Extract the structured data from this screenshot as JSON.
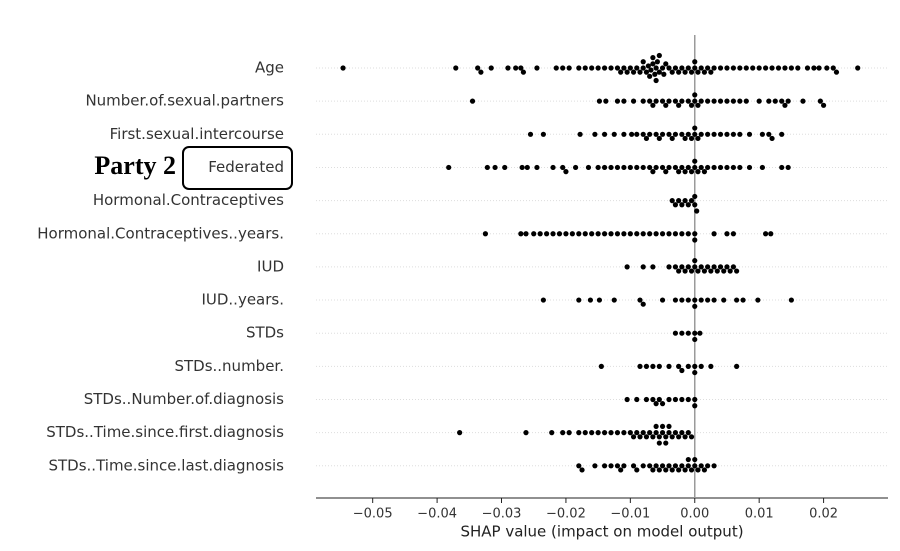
{
  "chart_data": {
    "type": "beeswarm",
    "annotation": "Party 2",
    "xlabel": "SHAP value (impact on model output)",
    "color": "#000000",
    "grid": true,
    "refline": 0,
    "xlim": [
      -0.0588,
      0.03
    ],
    "xticks": [
      {
        "value": -0.05,
        "label": "−0.05"
      },
      {
        "value": -0.04,
        "label": "−0.04"
      },
      {
        "value": -0.03,
        "label": "−0.03"
      },
      {
        "value": -0.02,
        "label": "−0.02"
      },
      {
        "value": -0.01,
        "label": "−0.01"
      },
      {
        "value": 0,
        "label": "0.00"
      },
      0.01,
      0.02
    ],
    "categories": [
      "Age",
      "Number.of.sexual.partners",
      "First.sexual.intercourse",
      "Federated",
      "Hormonal.Contraceptives",
      "Hormonal.Contraceptives..years.",
      "IUD",
      "IUD..years.",
      "STDs",
      "STDs..number.",
      "STDs..Number.of.diagnosis",
      "STDs..Time.since.first.diagnosis",
      "STDs..Time.since.last.diagnosis"
    ],
    "values": [
      [
        -0.0546,
        -0.0371,
        -0.0337,
        -0.0332,
        -0.0316,
        -0.029,
        -0.0278,
        -0.027,
        -0.0266,
        -0.0245,
        -0.0215,
        -0.0205,
        -0.0195,
        -0.018,
        -0.017,
        -0.016,
        -0.015,
        -0.014,
        -0.013,
        -0.012,
        -0.0115,
        -0.011,
        -0.0105,
        -0.01,
        -0.0095,
        -0.009,
        -0.0085,
        -0.008,
        -0.008,
        -0.0075,
        -0.0072,
        -0.007,
        -0.0068,
        -0.0065,
        -0.0065,
        -0.0062,
        -0.006,
        -0.006,
        -0.0058,
        -0.0055,
        -0.0055,
        -0.005,
        -0.0048,
        -0.0045,
        -0.004,
        -0.0035,
        -0.003,
        -0.0025,
        -0.002,
        -0.0015,
        -0.001,
        -0.0005,
        0,
        0,
        0.0005,
        0.001,
        0.0015,
        0.002,
        0.0025,
        0.003,
        0.004,
        0.005,
        0.006,
        0.007,
        0.008,
        0.009,
        0.01,
        0.011,
        0.012,
        0.013,
        0.014,
        0.015,
        0.016,
        0.0175,
        0.0185,
        0.0193,
        0.0205,
        0.0215,
        0.022,
        0.0253
      ],
      [
        -0.0345,
        -0.0148,
        -0.0138,
        -0.012,
        -0.011,
        -0.0095,
        -0.008,
        -0.007,
        -0.0065,
        -0.006,
        -0.005,
        -0.0045,
        -0.004,
        -0.003,
        -0.0025,
        -0.002,
        -0.001,
        -0.0005,
        0,
        0,
        0.0005,
        0.001,
        0.002,
        0.003,
        0.004,
        0.005,
        0.006,
        0.007,
        0.008,
        0.01,
        0.0115,
        0.0125,
        0.0135,
        0.014,
        0.0145,
        0.0168,
        0.0195,
        0.02
      ],
      [
        -0.0255,
        -0.0235,
        -0.0178,
        -0.0155,
        -0.014,
        -0.0125,
        -0.011,
        -0.0098,
        -0.009,
        -0.008,
        -0.0075,
        -0.007,
        -0.006,
        -0.0055,
        -0.005,
        -0.004,
        -0.0035,
        -0.003,
        -0.002,
        -0.0015,
        -0.001,
        -0.0005,
        0,
        0,
        0.0005,
        0.001,
        0.002,
        0.003,
        0.004,
        0.005,
        0.006,
        0.007,
        0.0085,
        0.0105,
        0.0115,
        0.012,
        0.0135
      ],
      [
        -0.0382,
        -0.0322,
        -0.031,
        -0.0295,
        -0.0268,
        -0.026,
        -0.0245,
        -0.022,
        -0.0205,
        -0.02,
        -0.0185,
        -0.0165,
        -0.015,
        -0.014,
        -0.013,
        -0.012,
        -0.011,
        -0.01,
        -0.009,
        -0.008,
        -0.007,
        -0.0065,
        -0.006,
        -0.005,
        -0.0045,
        -0.004,
        -0.003,
        -0.0025,
        -0.002,
        -0.0015,
        -0.001,
        -0.0005,
        0,
        0,
        0.0005,
        0.001,
        0.0015,
        0.002,
        0.003,
        0.004,
        0.005,
        0.006,
        0.007,
        0.0085,
        0.0105,
        0.0135,
        0.0145
      ],
      [
        -0.0035,
        -0.003,
        -0.0025,
        -0.002,
        -0.0015,
        -0.001,
        -0.0005,
        0,
        0,
        0.0003
      ],
      [
        -0.0325,
        -0.027,
        -0.0262,
        -0.025,
        -0.024,
        -0.023,
        -0.022,
        -0.021,
        -0.02,
        -0.019,
        -0.018,
        -0.017,
        -0.016,
        -0.015,
        -0.014,
        -0.013,
        -0.012,
        -0.011,
        -0.01,
        -0.009,
        -0.008,
        -0.007,
        -0.006,
        -0.005,
        -0.004,
        -0.003,
        -0.002,
        -0.001,
        0,
        0,
        0.003,
        0.005,
        0.006,
        0.011,
        0.0118
      ],
      [
        -0.0105,
        -0.008,
        -0.0065,
        -0.004,
        -0.003,
        -0.0025,
        -0.002,
        -0.0015,
        -0.001,
        -0.0005,
        0,
        0,
        0.0005,
        0.001,
        0.0015,
        0.002,
        0.0025,
        0.003,
        0.0035,
        0.004,
        0.0045,
        0.005,
        0.0055,
        0.006,
        0.0065
      ],
      [
        -0.0235,
        -0.018,
        -0.0162,
        -0.0148,
        -0.0125,
        -0.0085,
        -0.008,
        -0.005,
        -0.003,
        -0.002,
        -0.001,
        0,
        0,
        0.001,
        0.002,
        0.003,
        0.0045,
        0.0065,
        0.0075,
        0.0098,
        0.015
      ],
      [
        -0.003,
        -0.002,
        -0.001,
        0,
        0,
        0.0008
      ],
      [
        -0.0145,
        -0.0085,
        -0.0075,
        -0.0065,
        -0.0055,
        -0.004,
        -0.0025,
        -0.002,
        -0.001,
        0,
        0,
        0.001,
        0.0025,
        0.0065
      ],
      [
        -0.0105,
        -0.009,
        -0.0075,
        -0.0065,
        -0.006,
        -0.0055,
        -0.005,
        -0.004,
        -0.003,
        -0.002,
        -0.001,
        0,
        0
      ],
      [
        -0.0365,
        -0.0262,
        -0.0222,
        -0.0205,
        -0.0195,
        -0.018,
        -0.017,
        -0.016,
        -0.015,
        -0.014,
        -0.013,
        -0.012,
        -0.011,
        -0.01,
        -0.0095,
        -0.009,
        -0.0085,
        -0.008,
        -0.0075,
        -0.007,
        -0.0065,
        -0.006,
        -0.006,
        -0.0055,
        -0.0055,
        -0.005,
        -0.005,
        -0.0045,
        -0.0045,
        -0.004,
        -0.004,
        -0.0035,
        -0.003,
        -0.0025,
        -0.002,
        -0.0015,
        -0.001,
        -0.0005
      ],
      [
        -0.018,
        -0.0175,
        -0.0155,
        -0.014,
        -0.013,
        -0.012,
        -0.0115,
        -0.011,
        -0.0095,
        -0.009,
        -0.008,
        -0.007,
        -0.0065,
        -0.006,
        -0.0055,
        -0.005,
        -0.0045,
        -0.004,
        -0.0035,
        -0.003,
        -0.0025,
        -0.002,
        -0.0015,
        -0.001,
        -0.001,
        -0.0005,
        0,
        0,
        0.0005,
        0.001,
        0.0015,
        0.002,
        0.003
      ]
    ]
  }
}
